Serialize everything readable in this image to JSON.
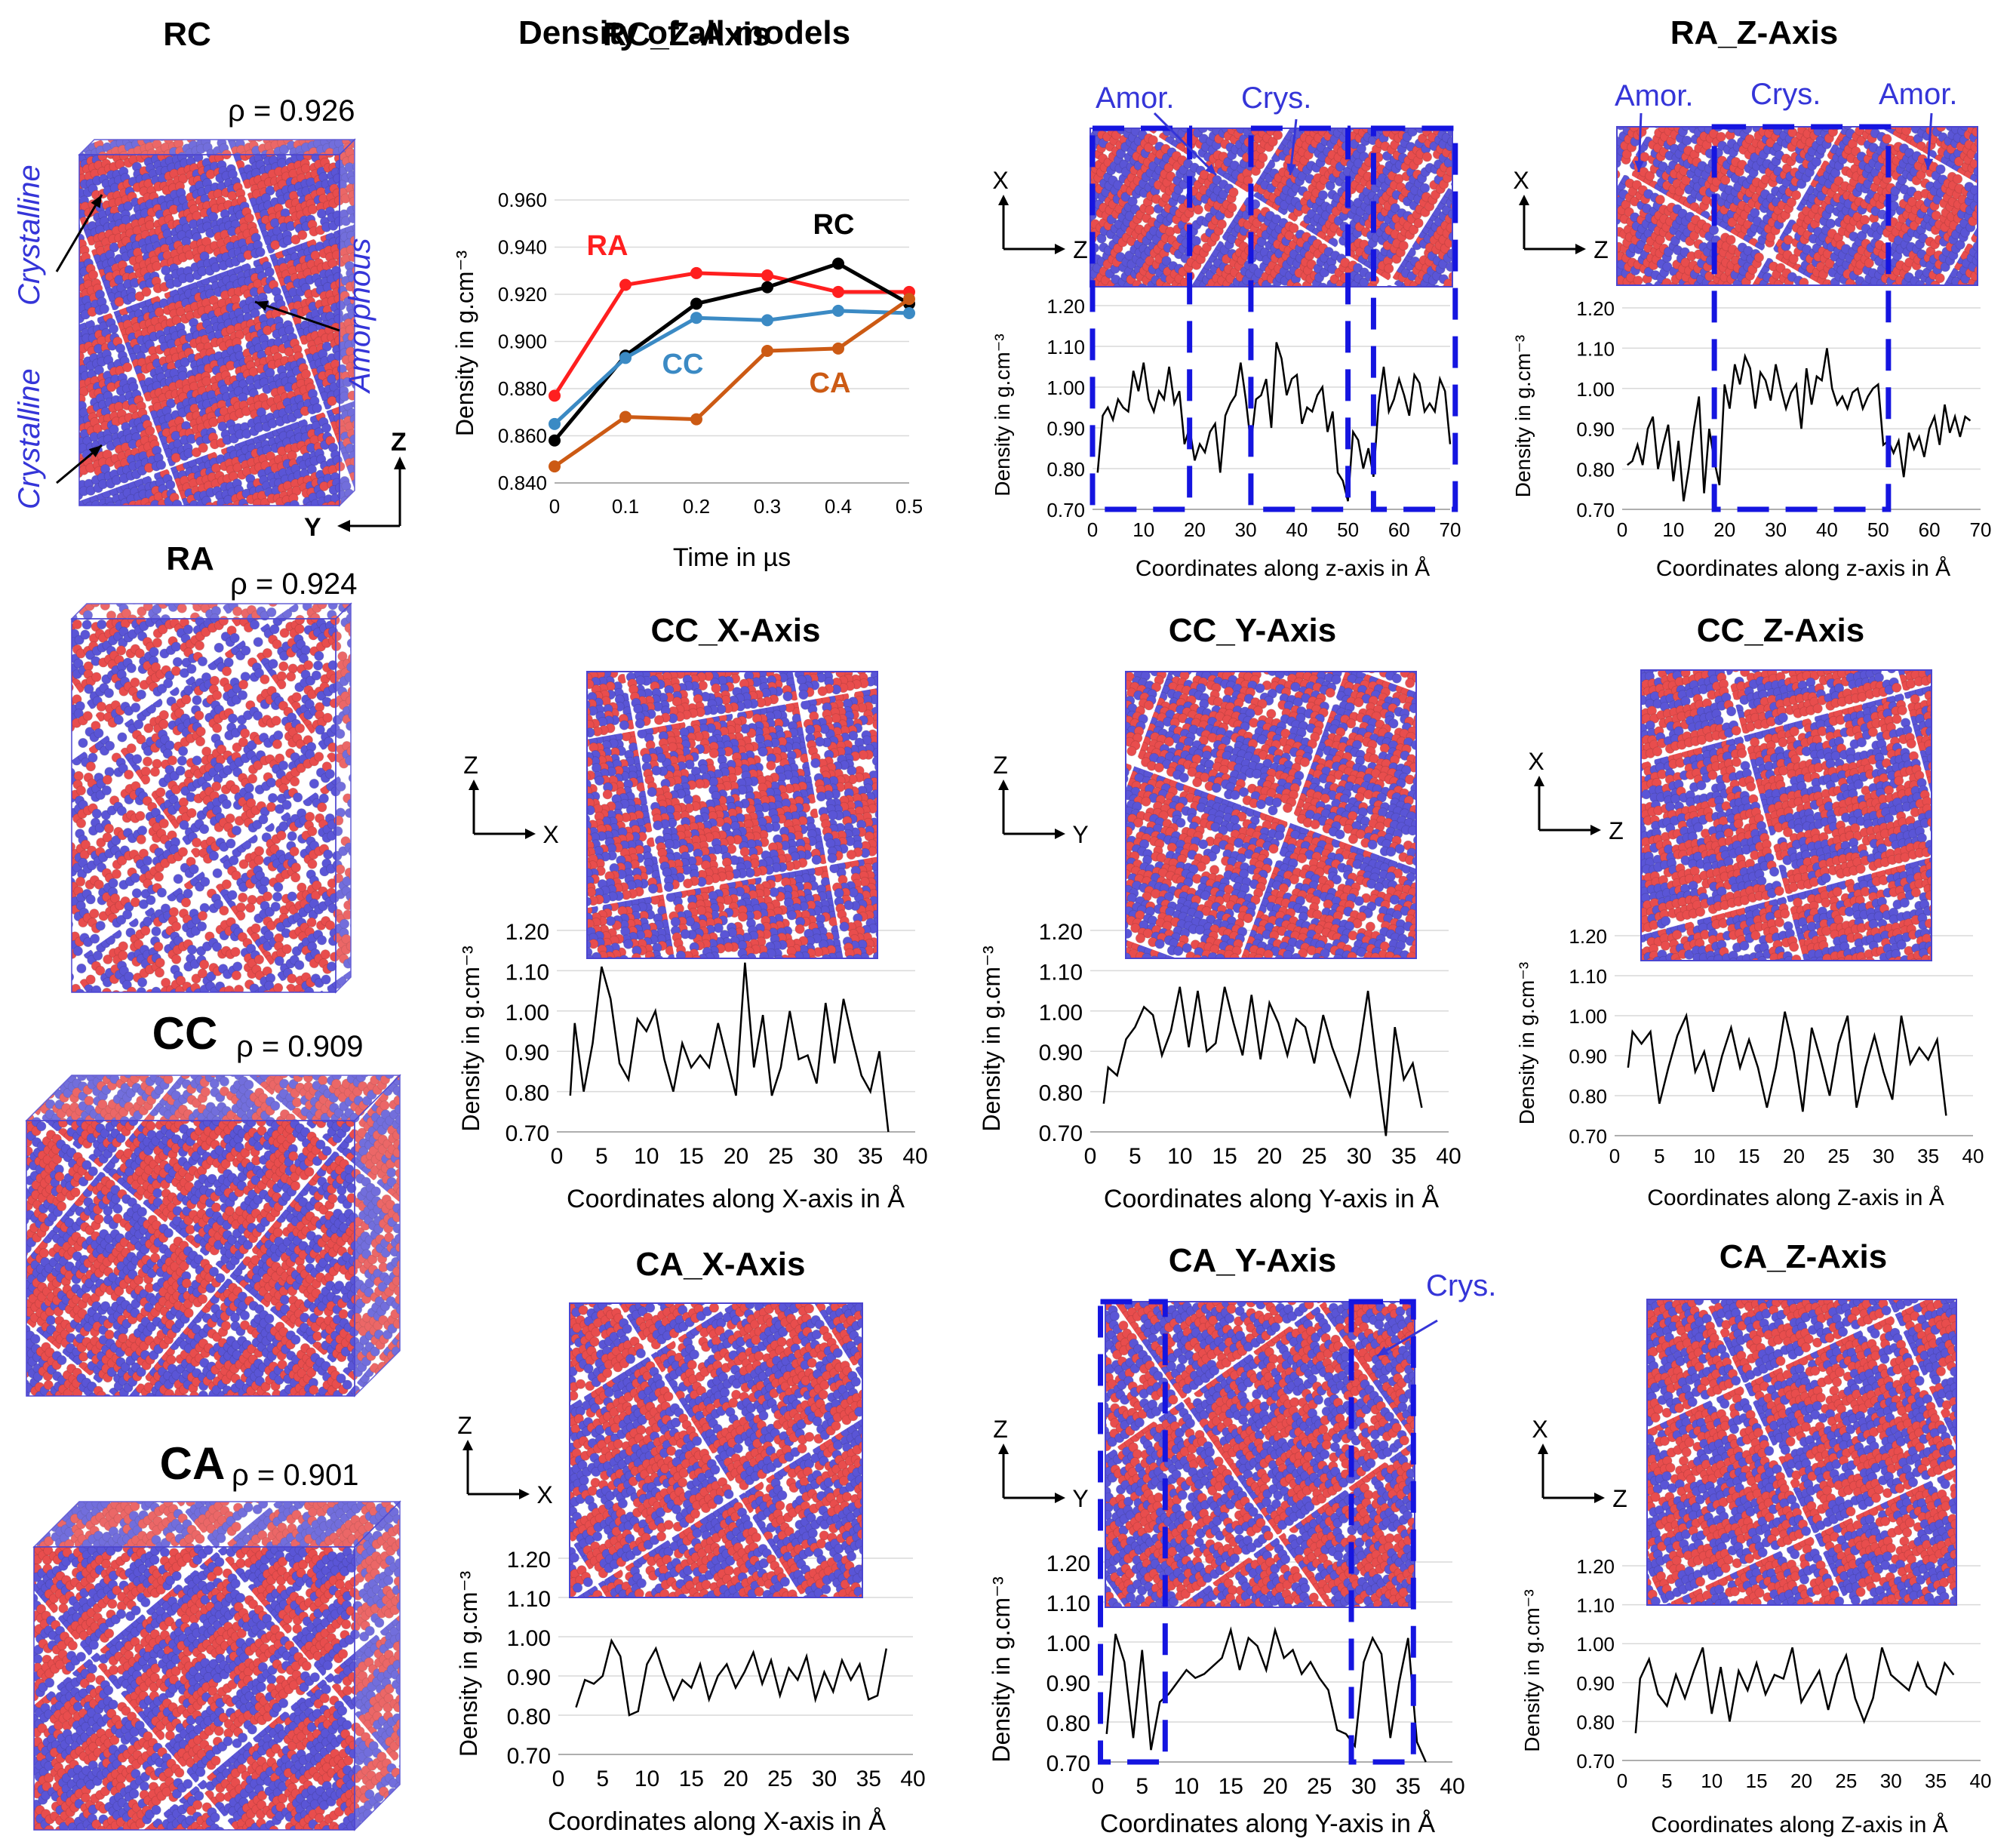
{
  "colors": {
    "red": "#e84d4d",
    "blue": "#5a55d6",
    "frame": "#4b45d0",
    "dash": "#1515e0",
    "annotation": "#3535d8"
  },
  "models": [
    {
      "label": "RC",
      "rho": "ρ = 0.926",
      "side": "tall",
      "pattern": "rc",
      "annotations": [
        {
          "text": "Crystalline",
          "pos": "top-left"
        },
        {
          "text": "Crystalline",
          "pos": "bottom-left"
        },
        {
          "text": "Amorphous",
          "pos": "right"
        }
      ],
      "axes": [
        "Z",
        "Y"
      ]
    },
    {
      "label": "RA",
      "rho": "ρ = 0.924",
      "side": "tall",
      "pattern": "ra"
    },
    {
      "label": "CC",
      "rho": "ρ = 0.909",
      "side": "cube",
      "pattern": "cc"
    },
    {
      "label": "CA",
      "rho": "ρ = 0.901",
      "side": "cube",
      "pattern": "ca"
    }
  ],
  "chart_data": [
    {
      "id": "density_all",
      "type": "line",
      "title": "Density of all models",
      "xlabel": "Time in µs",
      "ylabel": "Density in g.cm⁻³",
      "xlim": [
        0,
        0.5
      ],
      "ylim": [
        0.84,
        0.96
      ],
      "xticks": [
        "0",
        "0.1",
        "0.2",
        "0.3",
        "0.4",
        "0.5"
      ],
      "yticks": [
        "0.840",
        "0.860",
        "0.880",
        "0.900",
        "0.920",
        "0.940",
        "0.960"
      ],
      "x": [
        0,
        0.1,
        0.2,
        0.3,
        0.4,
        0.5
      ],
      "series": [
        {
          "name": "RA",
          "color": "#ff1f1f",
          "values": [
            0.877,
            0.924,
            0.929,
            0.928,
            0.921,
            0.921
          ]
        },
        {
          "name": "RC",
          "color": "#000000",
          "values": [
            0.858,
            0.894,
            0.916,
            0.923,
            0.933,
            0.916
          ]
        },
        {
          "name": "CC",
          "color": "#3b8ac4",
          "values": [
            0.865,
            0.893,
            0.91,
            0.909,
            0.913,
            0.912
          ]
        },
        {
          "name": "CA",
          "color": "#cc5a14",
          "values": [
            0.847,
            0.868,
            0.867,
            0.896,
            0.897,
            0.918
          ]
        }
      ]
    },
    {
      "id": "rc_z",
      "type": "line",
      "title": "RC_Z-Axis",
      "xlabel": "Coordinates along z-axis in Å",
      "ylabel": "Density in g.cm⁻³",
      "xlim": [
        0,
        70
      ],
      "ylim": [
        0.7,
        1.2
      ],
      "xticks": [
        "0",
        "10",
        "20",
        "30",
        "40",
        "50",
        "60",
        "70"
      ],
      "yticks": [
        "0.70",
        "0.80",
        "0.90",
        "1.00",
        "1.10",
        "1.20"
      ],
      "inset_axes": [
        "X",
        "Z"
      ],
      "pattern": "rcz",
      "dashed_regions": [
        [
          0,
          19
        ],
        [
          31,
          50
        ],
        [
          55,
          71
        ]
      ],
      "annotations": [
        {
          "text": "Amor.",
          "pos": "left"
        },
        {
          "text": "Crys.",
          "pos": "middle"
        }
      ],
      "x": [
        1,
        2,
        3,
        4,
        5,
        6,
        7,
        8,
        9,
        10,
        11,
        12,
        13,
        14,
        15,
        16,
        17,
        18,
        19,
        20,
        21,
        22,
        23,
        24,
        25,
        26,
        27,
        28,
        29,
        30,
        31,
        32,
        33,
        34,
        35,
        36,
        37,
        38,
        39,
        40,
        41,
        42,
        43,
        44,
        45,
        46,
        47,
        48,
        49,
        50,
        51,
        52,
        53,
        54,
        55,
        56,
        57,
        58,
        59,
        60,
        61,
        62,
        63,
        64,
        65,
        66,
        67,
        68,
        69,
        70
      ],
      "values": [
        0.79,
        0.93,
        0.95,
        0.92,
        0.97,
        0.95,
        0.94,
        1.04,
        0.99,
        1.06,
        0.97,
        0.94,
        0.99,
        0.97,
        1.05,
        0.96,
        0.99,
        0.86,
        0.9,
        0.82,
        0.86,
        0.84,
        0.89,
        0.91,
        0.79,
        0.93,
        0.96,
        0.98,
        1.06,
        0.97,
        0.86,
        0.97,
        0.98,
        1.02,
        0.9,
        1.11,
        1.07,
        0.98,
        1.02,
        1.03,
        0.91,
        0.95,
        0.94,
        0.98,
        1.0,
        0.89,
        0.94,
        0.79,
        0.77,
        0.72,
        0.89,
        0.87,
        0.8,
        0.85,
        0.78,
        0.96,
        1.05,
        0.94,
        0.97,
        1.02,
        0.98,
        0.93,
        1.03,
        1.01,
        0.94,
        0.96,
        0.94,
        1.02,
        0.99,
        0.86
      ]
    },
    {
      "id": "ra_z",
      "type": "line",
      "title": "RA_Z-Axis",
      "xlabel": "Coordinates along z-axis in Å",
      "ylabel": "Density in g.cm⁻³",
      "xlim": [
        0,
        70
      ],
      "ylim": [
        0.7,
        1.2
      ],
      "xticks": [
        "0",
        "10",
        "20",
        "30",
        "40",
        "50",
        "60",
        "70"
      ],
      "yticks": [
        "0.70",
        "0.80",
        "0.90",
        "1.00",
        "1.10",
        "1.20"
      ],
      "inset_axes": [
        "X",
        "Z"
      ],
      "pattern": "raz",
      "dashed_regions": [
        [
          18,
          52
        ]
      ],
      "annotations": [
        {
          "text": "Amor.",
          "pos": "left"
        },
        {
          "text": "Crys.",
          "pos": "middle"
        },
        {
          "text": "Amor.",
          "pos": "right"
        }
      ],
      "x": [
        1,
        2,
        3,
        4,
        5,
        6,
        7,
        8,
        9,
        10,
        11,
        12,
        13,
        14,
        15,
        16,
        17,
        18,
        19,
        20,
        21,
        22,
        23,
        24,
        25,
        26,
        27,
        28,
        29,
        30,
        31,
        32,
        33,
        34,
        35,
        36,
        37,
        38,
        39,
        40,
        41,
        42,
        43,
        44,
        45,
        46,
        47,
        48,
        49,
        50,
        51,
        52,
        53,
        54,
        55,
        56,
        57,
        58,
        59,
        60,
        61,
        62,
        63,
        64,
        65,
        66,
        67,
        68
      ],
      "values": [
        0.81,
        0.82,
        0.86,
        0.81,
        0.9,
        0.93,
        0.8,
        0.86,
        0.91,
        0.77,
        0.87,
        0.72,
        0.8,
        0.9,
        0.98,
        0.74,
        0.9,
        0.82,
        0.76,
        1.01,
        0.95,
        1.06,
        1.01,
        1.08,
        1.05,
        0.95,
        1.04,
        1.02,
        0.97,
        1.06,
        1.0,
        0.95,
        0.99,
        1.01,
        0.9,
        1.05,
        0.96,
        1.03,
        1.02,
        1.1,
        1.0,
        0.96,
        0.98,
        0.95,
        0.99,
        1.0,
        0.95,
        0.98,
        1.0,
        1.01,
        0.86,
        0.87,
        0.84,
        0.87,
        0.78,
        0.89,
        0.85,
        0.88,
        0.83,
        0.9,
        0.93,
        0.86,
        0.96,
        0.89,
        0.93,
        0.88,
        0.93,
        0.92
      ]
    },
    {
      "id": "cc_x",
      "type": "line",
      "title": "CC_X-Axis",
      "xlabel": "Coordinates along X-axis in Å",
      "ylabel": "Density in g.cm⁻³",
      "xlim": [
        0,
        40
      ],
      "ylim": [
        0.7,
        1.2
      ],
      "xticks": [
        "0",
        "5",
        "10",
        "15",
        "20",
        "25",
        "30",
        "35",
        "40"
      ],
      "yticks": [
        "0.70",
        "0.80",
        "0.90",
        "1.00",
        "1.10",
        "1.20"
      ],
      "inset_axes": [
        "Z",
        "X"
      ],
      "pattern": "ccx",
      "x": [
        1.5,
        2,
        3,
        4,
        5,
        6,
        7,
        8,
        9,
        10,
        11,
        12,
        13,
        14,
        15,
        16,
        17,
        18,
        19,
        20,
        21,
        22,
        23,
        24,
        25,
        26,
        27,
        28,
        29,
        30,
        31,
        32,
        33,
        34,
        35,
        36,
        37
      ],
      "values": [
        0.79,
        0.97,
        0.8,
        0.92,
        1.11,
        1.03,
        0.87,
        0.83,
        0.98,
        0.95,
        1.0,
        0.88,
        0.8,
        0.92,
        0.86,
        0.89,
        0.86,
        0.97,
        0.88,
        0.79,
        1.12,
        0.86,
        0.99,
        0.79,
        0.86,
        1.0,
        0.88,
        0.89,
        0.82,
        1.02,
        0.87,
        1.03,
        0.93,
        0.84,
        0.8,
        0.9,
        0.7
      ]
    },
    {
      "id": "cc_y",
      "type": "line",
      "title": "CC_Y-Axis",
      "xlabel": "Coordinates along Y-axis in Å",
      "ylabel": "Density in g.cm⁻³",
      "xlim": [
        0,
        40
      ],
      "ylim": [
        0.7,
        1.2
      ],
      "xticks": [
        "0",
        "5",
        "10",
        "15",
        "20",
        "25",
        "30",
        "35",
        "40"
      ],
      "yticks": [
        "0.70",
        "0.80",
        "0.90",
        "1.00",
        "1.10",
        "1.20"
      ],
      "inset_axes": [
        "Z",
        "Y"
      ],
      "pattern": "ccy",
      "x": [
        1.5,
        2,
        3,
        4,
        5,
        6,
        7,
        8,
        9,
        10,
        11,
        12,
        13,
        14,
        15,
        16,
        17,
        18,
        19,
        20,
        21,
        22,
        23,
        24,
        25,
        26,
        27,
        28,
        29,
        30,
        31,
        32,
        33,
        34,
        35,
        36,
        37
      ],
      "values": [
        0.77,
        0.86,
        0.84,
        0.93,
        0.96,
        1.01,
        0.99,
        0.89,
        0.95,
        1.06,
        0.91,
        1.05,
        0.9,
        0.92,
        1.06,
        0.97,
        0.89,
        1.04,
        0.88,
        1.02,
        0.97,
        0.89,
        0.98,
        0.96,
        0.87,
        0.99,
        0.91,
        0.85,
        0.79,
        0.9,
        1.05,
        0.86,
        0.69,
        0.96,
        0.83,
        0.87,
        0.76
      ]
    },
    {
      "id": "cc_z",
      "type": "line",
      "title": "CC_Z-Axis",
      "xlabel": "Coordinates along Z-axis in Å",
      "ylabel": "Density in g.cm⁻³",
      "xlim": [
        0,
        40
      ],
      "ylim": [
        0.7,
        1.2
      ],
      "xticks": [
        "0",
        "5",
        "10",
        "15",
        "20",
        "25",
        "30",
        "35",
        "40"
      ],
      "yticks": [
        "0.70",
        "0.80",
        "0.90",
        "1.00",
        "1.10",
        "1.20"
      ],
      "inset_axes": [
        "X",
        "Z"
      ],
      "pattern": "ccz",
      "x": [
        1.5,
        2,
        3,
        4,
        5,
        6,
        7,
        8,
        9,
        10,
        11,
        12,
        13,
        14,
        15,
        16,
        17,
        18,
        19,
        20,
        21,
        22,
        23,
        24,
        25,
        26,
        27,
        28,
        29,
        30,
        31,
        32,
        33,
        34,
        35,
        36,
        37
      ],
      "values": [
        0.87,
        0.96,
        0.93,
        0.96,
        0.78,
        0.87,
        0.95,
        1.0,
        0.86,
        0.91,
        0.81,
        0.9,
        0.97,
        0.87,
        0.94,
        0.87,
        0.77,
        0.87,
        1.01,
        0.91,
        0.76,
        0.97,
        0.89,
        0.8,
        0.93,
        1.0,
        0.77,
        0.87,
        0.95,
        0.86,
        0.79,
        1.0,
        0.88,
        0.92,
        0.89,
        0.94,
        0.75
      ]
    },
    {
      "id": "ca_x",
      "type": "line",
      "title": "CA_X-Axis",
      "xlabel": "Coordinates along X-axis in Å",
      "ylabel": "Density in g.cm⁻³",
      "xlim": [
        0,
        40
      ],
      "ylim": [
        0.7,
        1.2
      ],
      "xticks": [
        "0",
        "5",
        "10",
        "15",
        "20",
        "25",
        "30",
        "35",
        "40"
      ],
      "yticks": [
        "0.70",
        "0.80",
        "0.90",
        "1.00",
        "1.10",
        "1.20"
      ],
      "inset_axes": [
        "Z",
        "X"
      ],
      "pattern": "cax",
      "x": [
        2,
        3,
        4,
        5,
        6,
        7,
        8,
        9,
        10,
        11,
        12,
        13,
        14,
        15,
        16,
        17,
        18,
        19,
        20,
        21,
        22,
        23,
        24,
        25,
        26,
        27,
        28,
        29,
        30,
        31,
        32,
        33,
        34,
        35,
        36,
        37
      ],
      "values": [
        0.82,
        0.89,
        0.88,
        0.9,
        0.99,
        0.95,
        0.8,
        0.81,
        0.93,
        0.97,
        0.9,
        0.84,
        0.89,
        0.87,
        0.93,
        0.84,
        0.9,
        0.93,
        0.87,
        0.91,
        0.96,
        0.88,
        0.94,
        0.85,
        0.92,
        0.89,
        0.95,
        0.84,
        0.91,
        0.86,
        0.94,
        0.89,
        0.93,
        0.84,
        0.85,
        0.97
      ]
    },
    {
      "id": "ca_y",
      "type": "line",
      "title": "CA_Y-Axis",
      "xlabel": "Coordinates along Y-axis in Å",
      "ylabel": "Density in g.cm⁻³",
      "xlim": [
        0,
        40
      ],
      "ylim": [
        0.7,
        1.2
      ],
      "xticks": [
        "0",
        "5",
        "10",
        "15",
        "20",
        "25",
        "30",
        "35",
        "40"
      ],
      "yticks": [
        "0.70",
        "0.80",
        "0.90",
        "1.00",
        "1.10",
        "1.20"
      ],
      "inset_axes": [
        "Z",
        "Y"
      ],
      "pattern": "cay",
      "dashed_regions": [
        [
          0.3,
          7.6
        ],
        [
          28.6,
          35.6
        ]
      ],
      "annotations": [
        {
          "text": "Crys.",
          "pos": "right"
        }
      ],
      "x": [
        1,
        2,
        3,
        4,
        5,
        6,
        7,
        8,
        9,
        10,
        11,
        12,
        13,
        14,
        15,
        16,
        17,
        18,
        19,
        20,
        21,
        22,
        23,
        24,
        25,
        26,
        27,
        28,
        29,
        30,
        31,
        32,
        33,
        34,
        35,
        36,
        37
      ],
      "values": [
        0.77,
        1.02,
        0.95,
        0.76,
        0.98,
        0.73,
        0.85,
        0.87,
        0.9,
        0.93,
        0.91,
        0.92,
        0.94,
        0.96,
        1.03,
        0.93,
        1.01,
        0.99,
        0.93,
        1.03,
        0.96,
        0.98,
        0.92,
        0.95,
        0.91,
        0.88,
        0.78,
        0.77,
        0.74,
        0.95,
        1.01,
        0.97,
        0.76,
        0.9,
        1.01,
        0.75,
        0.7
      ]
    },
    {
      "id": "ca_z",
      "type": "line",
      "title": "CA_Z-Axis",
      "xlabel": "Coordinates along Z-axis in Å",
      "ylabel": "Density in g.cm⁻³",
      "xlim": [
        0,
        40
      ],
      "ylim": [
        0.7,
        1.2
      ],
      "xticks": [
        "0",
        "5",
        "10",
        "15",
        "20",
        "25",
        "30",
        "35",
        "40"
      ],
      "yticks": [
        "0.70",
        "0.80",
        "0.90",
        "1.00",
        "1.10",
        "1.20"
      ],
      "inset_axes": [
        "X",
        "Z"
      ],
      "pattern": "caz",
      "x": [
        1.5,
        2,
        3,
        4,
        5,
        6,
        7,
        8,
        9,
        10,
        11,
        12,
        13,
        14,
        15,
        16,
        17,
        18,
        19,
        20,
        21,
        22,
        23,
        24,
        25,
        26,
        27,
        28,
        29,
        30,
        31,
        32,
        33,
        34,
        35,
        36,
        37
      ],
      "values": [
        0.77,
        0.91,
        0.96,
        0.87,
        0.84,
        0.92,
        0.86,
        0.93,
        0.99,
        0.82,
        0.94,
        0.8,
        0.93,
        0.88,
        0.95,
        0.87,
        0.92,
        0.91,
        0.99,
        0.85,
        0.89,
        0.93,
        0.83,
        0.92,
        0.97,
        0.86,
        0.8,
        0.86,
        0.99,
        0.92,
        0.9,
        0.88,
        0.95,
        0.89,
        0.87,
        0.95,
        0.92
      ]
    }
  ]
}
